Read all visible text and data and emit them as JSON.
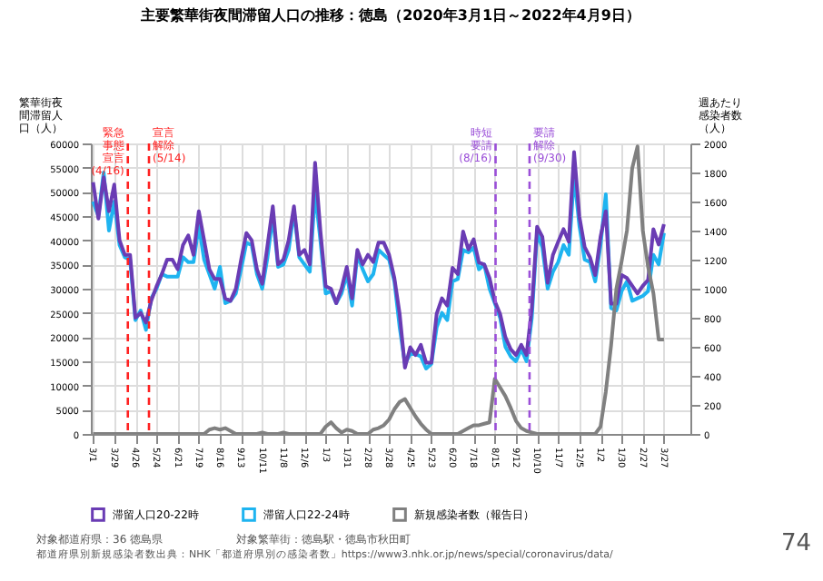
{
  "chart_data": {
    "type": "line",
    "title": "主要繁華街夜間滞留人口の推移：徳島（2020年3月1日～2022年4月9日）",
    "ylabel": "繁華街夜間滞留人口（人）",
    "y2label": "週あたり感染者数（人）",
    "x": [
      "2020-03-01",
      "2020-03-08",
      "2020-03-15",
      "2020-03-22",
      "2020-03-29",
      "2020-04-05",
      "2020-04-12",
      "2020-04-19",
      "2020-04-26",
      "2020-05-03",
      "2020-05-10",
      "2020-05-17",
      "2020-05-24",
      "2020-05-31",
      "2020-06-07",
      "2020-06-14",
      "2020-06-21",
      "2020-06-28",
      "2020-07-05",
      "2020-07-12",
      "2020-07-19",
      "2020-07-26",
      "2020-08-02",
      "2020-08-09",
      "2020-08-16",
      "2020-08-23",
      "2020-08-30",
      "2020-09-06",
      "2020-09-13",
      "2020-09-20",
      "2020-09-27",
      "2020-10-04",
      "2020-10-11",
      "2020-10-18",
      "2020-10-25",
      "2020-11-01",
      "2020-11-08",
      "2020-11-15",
      "2020-11-22",
      "2020-11-29",
      "2020-12-06",
      "2020-12-13",
      "2020-12-20",
      "2020-12-27",
      "2021-01-03",
      "2021-01-10",
      "2021-01-17",
      "2021-01-24",
      "2021-01-31",
      "2021-02-07",
      "2021-02-14",
      "2021-02-21",
      "2021-02-28",
      "2021-03-07",
      "2021-03-14",
      "2021-03-21",
      "2021-03-28",
      "2021-04-04",
      "2021-04-11",
      "2021-04-18",
      "2021-04-25",
      "2021-05-02",
      "2021-05-09",
      "2021-05-16",
      "2021-05-23",
      "2021-05-30",
      "2021-06-06",
      "2021-06-13",
      "2021-06-20",
      "2021-06-27",
      "2021-07-04",
      "2021-07-11",
      "2021-07-18",
      "2021-07-25",
      "2021-08-01",
      "2021-08-08",
      "2021-08-15",
      "2021-08-22",
      "2021-08-29",
      "2021-09-05",
      "2021-09-12",
      "2021-09-19",
      "2021-09-26",
      "2021-10-03",
      "2021-10-10",
      "2021-10-17",
      "2021-10-24",
      "2021-10-31",
      "2021-11-07",
      "2021-11-14",
      "2021-11-21",
      "2021-11-28",
      "2021-12-05",
      "2021-12-12",
      "2021-12-19",
      "2021-12-26",
      "2022-01-02",
      "2022-01-09",
      "2022-01-16",
      "2022-01-23",
      "2022-01-30",
      "2022-02-06",
      "2022-02-13",
      "2022-02-20",
      "2022-02-27",
      "2022-03-06",
      "2022-03-13",
      "2022-03-20",
      "2022-03-27"
    ],
    "series": [
      {
        "name": "滞留人口20-22時",
        "color": "#6a3cb4",
        "values": [
          52000,
          44500,
          53000,
          46000,
          51500,
          40000,
          37000,
          37000,
          24000,
          25000,
          23000,
          27500,
          30500,
          33000,
          36000,
          36000,
          34000,
          39000,
          41000,
          37000,
          46000,
          40000,
          34000,
          32000,
          32000,
          28000,
          27500,
          30000,
          36000,
          41500,
          40000,
          34000,
          31000,
          39000,
          47000,
          35000,
          36000,
          40000,
          47000,
          37000,
          38000,
          35000,
          56000,
          42000,
          30500,
          30000,
          27000,
          30000,
          34500,
          28000,
          38000,
          35000,
          37000,
          35500,
          39500,
          39500,
          37000,
          32200,
          24800,
          13700,
          17900,
          16300,
          18400,
          14700,
          14700,
          24800,
          28000,
          26500,
          34300,
          33000,
          41800,
          38100,
          40200,
          35400,
          35000,
          32200,
          27400,
          24800,
          20000,
          17500,
          16300,
          18400,
          16300,
          25900,
          42800,
          40700,
          31200,
          37000,
          39700,
          42300,
          39700,
          58200,
          44900,
          38600,
          36500,
          32800,
          40700,
          46000,
          26900,
          26900,
          32800,
          32200,
          30600,
          29000,
          30600,
          31800,
          42300,
          39100,
          43300
        ]
      },
      {
        "name": "滞留人口22-24時",
        "color": "#1eb4f0",
        "values": [
          48000,
          45000,
          54000,
          42000,
          48000,
          39000,
          36500,
          36000,
          23500,
          25500,
          21500,
          28000,
          30000,
          33000,
          32500,
          32500,
          32500,
          36500,
          35500,
          35500,
          43000,
          36000,
          33000,
          30000,
          34500,
          27000,
          27500,
          29000,
          34000,
          39500,
          39000,
          33000,
          30000,
          36500,
          45000,
          34500,
          35000,
          38000,
          46000,
          36500,
          35000,
          33500,
          50000,
          40000,
          29000,
          29500,
          27000,
          29000,
          33000,
          26500,
          37000,
          34000,
          31500,
          33000,
          38000,
          37000,
          36000,
          31500,
          22000,
          14500,
          16500,
          16500,
          16000,
          13500,
          14500,
          22000,
          25000,
          23500,
          31500,
          32000,
          38000,
          37500,
          38500,
          34000,
          35000,
          30000,
          27000,
          24000,
          18000,
          16000,
          15000,
          17500,
          15000,
          24000,
          41500,
          38500,
          30000,
          33500,
          35500,
          39000,
          37000,
          53500,
          43000,
          36000,
          35500,
          31500,
          39000,
          49500,
          26000,
          25500,
          29500,
          31500,
          27500,
          28000,
          28500,
          29500,
          37000,
          35000,
          41500
        ]
      },
      {
        "name": "新規感染者数（報告日）",
        "color": "#808080",
        "axis": "y2",
        "values": [
          0,
          0,
          0,
          0,
          0,
          0,
          0,
          0,
          0,
          0,
          0,
          0,
          0,
          0,
          0,
          0,
          0,
          0,
          0,
          0,
          0,
          0,
          30,
          40,
          30,
          40,
          20,
          0,
          0,
          0,
          0,
          0,
          10,
          0,
          0,
          0,
          10,
          0,
          0,
          0,
          0,
          0,
          0,
          0,
          50,
          80,
          40,
          10,
          30,
          20,
          0,
          0,
          0,
          30,
          40,
          60,
          100,
          170,
          220,
          240,
          180,
          120,
          70,
          30,
          0,
          0,
          0,
          0,
          0,
          0,
          20,
          40,
          60,
          60,
          70,
          80,
          380,
          320,
          260,
          180,
          90,
          40,
          20,
          10,
          0,
          0,
          0,
          0,
          0,
          0,
          0,
          0,
          0,
          0,
          0,
          0,
          50,
          290,
          610,
          1000,
          1190,
          1400,
          1830,
          1980,
          1400,
          1150,
          970,
          650,
          650
        ]
      }
    ],
    "xlim": [
      "2020-02-27",
      "2022-05-01"
    ],
    "xticks": [
      {
        "value": "2020-03-01",
        "label": "3/1"
      },
      {
        "value": "2020-03-29",
        "label": "3/29"
      },
      {
        "value": "2020-04-26",
        "label": "4/26"
      },
      {
        "value": "2020-05-24",
        "label": "5/24"
      },
      {
        "value": "2020-06-21",
        "label": "6/21"
      },
      {
        "value": "2020-07-19",
        "label": "7/19"
      },
      {
        "value": "2020-08-16",
        "label": "8/16"
      },
      {
        "value": "2020-09-13",
        "label": "9/13"
      },
      {
        "value": "2020-10-11",
        "label": "10/11"
      },
      {
        "value": "2020-11-08",
        "label": "11/8"
      },
      {
        "value": "2020-12-06",
        "label": "12/6"
      },
      {
        "value": "2021-01-03",
        "label": "1/3"
      },
      {
        "value": "2021-01-31",
        "label": "1/31"
      },
      {
        "value": "2021-02-28",
        "label": "2/28"
      },
      {
        "value": "2021-03-28",
        "label": "3/28"
      },
      {
        "value": "2021-04-25",
        "label": "4/25"
      },
      {
        "value": "2021-05-23",
        "label": "5/23"
      },
      {
        "value": "2021-06-20",
        "label": "6/20"
      },
      {
        "value": "2021-07-18",
        "label": "7/18"
      },
      {
        "value": "2021-08-15",
        "label": "8/15"
      },
      {
        "value": "2021-09-12",
        "label": "9/12"
      },
      {
        "value": "2021-10-10",
        "label": "10/10"
      },
      {
        "value": "2021-11-07",
        "label": "11/7"
      },
      {
        "value": "2021-12-05",
        "label": "12/5"
      },
      {
        "value": "2022-01-02",
        "label": "1/2"
      },
      {
        "value": "2022-01-30",
        "label": "1/30"
      },
      {
        "value": "2022-02-27",
        "label": "2/27"
      },
      {
        "value": "2022-03-27",
        "label": "3/27"
      }
    ],
    "ylim": [
      0,
      60000
    ],
    "yticks": [
      0,
      5000,
      10000,
      15000,
      20000,
      25000,
      30000,
      35000,
      40000,
      45000,
      50000,
      55000,
      60000
    ],
    "y2lim": [
      0,
      2000
    ],
    "y2ticks": [
      0,
      200,
      400,
      600,
      800,
      1000,
      1200,
      1400,
      1600,
      1800,
      2000
    ],
    "ref_lines": [
      {
        "axis": "x",
        "value": "2020-04-16",
        "label": "緊急事態宣言(4/16)",
        "color": "#ff2020",
        "line_style": "dashed"
      },
      {
        "axis": "x",
        "value": "2020-05-14",
        "label": "宣言解除(5/14)",
        "color": "#ff2020",
        "line_style": "dashed"
      },
      {
        "axis": "x",
        "value": "2021-08-16",
        "label": "時短要請(8/16)",
        "color": "#9b4fd8",
        "line_style": "dashed"
      },
      {
        "axis": "x",
        "value": "2021-09-30",
        "label": "要請解除(9/30)",
        "color": "#9b4fd8",
        "line_style": "dashed"
      }
    ],
    "grid": true,
    "legend": "bottom",
    "annotations": [
      "対象都道府県：36 徳島県",
      "対象繁華街：徳島駅・徳島市秋田町",
      "都道府県別新規感染者数出典：NHK「都道府県別の感染者数」https://www3.nhk.or.jp/news/special/coronavirus/data/",
      "74"
    ]
  }
}
